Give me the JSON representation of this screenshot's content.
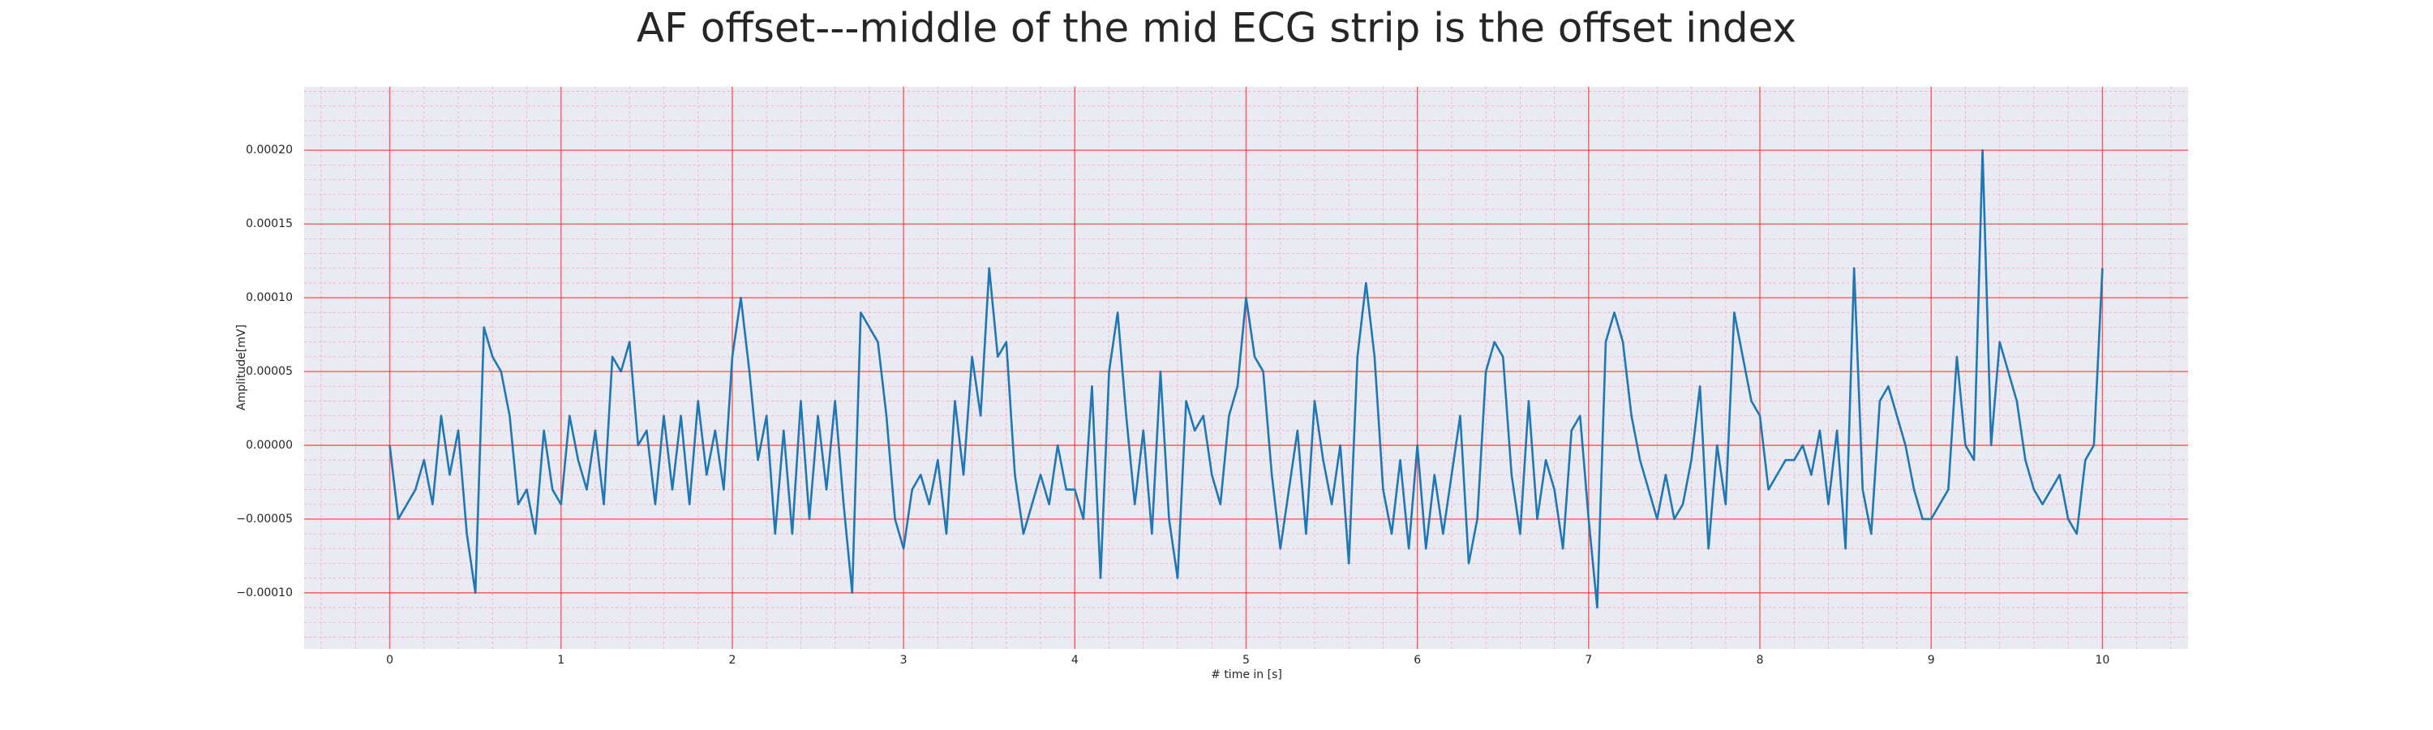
{
  "chart_data": {
    "type": "line",
    "title": "AF offset---middle of the mid ECG strip is the offset index",
    "xlabel": "# time in [s]",
    "ylabel": "Amplitude[mV]",
    "grid": true,
    "minor_grid": true,
    "xlim": [
      -0.5,
      10.5
    ],
    "ylim": [
      -0.000138,
      0.000243
    ],
    "xticks": [
      0,
      1,
      2,
      3,
      4,
      5,
      6,
      7,
      8,
      9,
      10
    ],
    "yticks": [
      {
        "value": -0.0001,
        "label": "−0.00010"
      },
      {
        "value": -5e-05,
        "label": "−0.00005"
      },
      {
        "value": 0,
        "label": "0.00000"
      },
      {
        "value": 5e-05,
        "label": "0.00005"
      },
      {
        "value": 0.0001,
        "label": "0.00010"
      },
      {
        "value": 0.00015,
        "label": "0.00015"
      },
      {
        "value": 0.0002,
        "label": "0.00020"
      }
    ],
    "x": [
      0,
      0.05,
      0.1,
      0.15,
      0.2,
      0.25,
      0.3,
      0.35,
      0.4,
      0.45,
      0.5,
      0.55,
      0.6,
      0.65,
      0.7,
      0.75,
      0.8,
      0.85,
      0.9,
      0.95,
      1,
      1.05,
      1.1,
      1.15,
      1.2,
      1.25,
      1.3,
      1.35,
      1.4,
      1.45,
      1.5,
      1.55,
      1.6,
      1.65,
      1.7,
      1.75,
      1.8,
      1.85,
      1.9,
      1.95,
      2,
      2.05,
      2.1,
      2.15,
      2.2,
      2.25,
      2.3,
      2.35,
      2.4,
      2.45,
      2.5,
      2.55,
      2.6,
      2.65,
      2.7,
      2.75,
      2.8,
      2.85,
      2.9,
      2.95,
      3,
      3.05,
      3.1,
      3.15,
      3.2,
      3.25,
      3.3,
      3.35,
      3.4,
      3.45,
      3.5,
      3.55,
      3.6,
      3.65,
      3.7,
      3.75,
      3.8,
      3.85,
      3.9,
      3.95,
      4,
      4.05,
      4.1,
      4.15,
      4.2,
      4.25,
      4.3,
      4.35,
      4.4,
      4.45,
      4.5,
      4.55,
      4.6,
      4.65,
      4.7,
      4.75,
      4.8,
      4.85,
      4.9,
      4.95,
      5,
      5.05,
      5.1,
      5.15,
      5.2,
      5.25,
      5.3,
      5.35,
      5.4,
      5.45,
      5.5,
      5.55,
      5.6,
      5.65,
      5.7,
      5.75,
      5.8,
      5.85,
      5.9,
      5.95,
      6,
      6.05,
      6.1,
      6.15,
      6.2,
      6.25,
      6.3,
      6.35,
      6.4,
      6.45,
      6.5,
      6.55,
      6.6,
      6.65,
      6.7,
      6.75,
      6.8,
      6.85,
      6.9,
      6.95,
      7,
      7.05,
      7.1,
      7.15,
      7.2,
      7.25,
      7.3,
      7.35,
      7.4,
      7.45,
      7.5,
      7.55,
      7.6,
      7.65,
      7.7,
      7.75,
      7.8,
      7.85,
      7.9,
      7.95,
      8,
      8.05,
      8.1,
      8.15,
      8.2,
      8.25,
      8.3,
      8.35,
      8.4,
      8.45,
      8.5,
      8.55,
      8.6,
      8.65,
      8.7,
      8.75,
      8.8,
      8.85,
      8.9,
      8.95,
      9,
      9.05,
      9.1,
      9.15,
      9.2,
      9.25,
      9.3,
      9.35,
      9.4,
      9.45,
      9.5,
      9.55,
      9.6,
      9.65,
      9.7,
      9.75,
      9.8,
      9.85,
      9.9,
      9.95,
      10
    ],
    "series": [
      {
        "color": "#1f77b4",
        "values": [
          0,
          -5e-05,
          -4e-05,
          -3e-05,
          -1e-05,
          -4e-05,
          2e-05,
          -2e-05,
          1e-05,
          -6e-05,
          -0.0001,
          8e-05,
          6e-05,
          5e-05,
          2e-05,
          -4e-05,
          -3e-05,
          -6e-05,
          1e-05,
          -3e-05,
          -4e-05,
          2e-05,
          -1e-05,
          -3e-05,
          1e-05,
          -4e-05,
          6e-05,
          5e-05,
          7e-05,
          0,
          1e-05,
          -4e-05,
          2e-05,
          -3e-05,
          2e-05,
          -4e-05,
          3e-05,
          -2e-05,
          1e-05,
          -3e-05,
          6e-05,
          0.0001,
          5e-05,
          -1e-05,
          2e-05,
          -6e-05,
          1e-05,
          -6e-05,
          3e-05,
          -5e-05,
          2e-05,
          -3e-05,
          3e-05,
          -4e-05,
          -0.0001,
          9e-05,
          8e-05,
          7e-05,
          2e-05,
          -5e-05,
          -7e-05,
          -3e-05,
          -2e-05,
          -4e-05,
          -1e-05,
          -6e-05,
          3e-05,
          -2e-05,
          6e-05,
          2e-05,
          0.00012,
          6e-05,
          7e-05,
          -2e-05,
          -6e-05,
          -4e-05,
          -2e-05,
          -4e-05,
          0,
          -3e-05,
          -3e-05,
          -5e-05,
          4e-05,
          -9e-05,
          5e-05,
          9e-05,
          2e-05,
          -4e-05,
          1e-05,
          -6e-05,
          5e-05,
          -5e-05,
          -9e-05,
          3e-05,
          1e-05,
          2e-05,
          -2e-05,
          -4e-05,
          2e-05,
          4e-05,
          0.0001,
          6e-05,
          5e-05,
          -2e-05,
          -7e-05,
          -3e-05,
          1e-05,
          -6e-05,
          3e-05,
          -1e-05,
          -4e-05,
          0,
          -8e-05,
          6e-05,
          0.00011,
          6e-05,
          -3e-05,
          -6e-05,
          -1e-05,
          -7e-05,
          0,
          -7e-05,
          -2e-05,
          -6e-05,
          -2e-05,
          2e-05,
          -8e-05,
          -5e-05,
          5e-05,
          7e-05,
          6e-05,
          -2e-05,
          -6e-05,
          3e-05,
          -5e-05,
          -1e-05,
          -3e-05,
          -7e-05,
          1e-05,
          2e-05,
          -5e-05,
          -0.00011,
          7e-05,
          9e-05,
          7e-05,
          2e-05,
          -1e-05,
          -3e-05,
          -5e-05,
          -2e-05,
          -5e-05,
          -4e-05,
          -1e-05,
          4e-05,
          -7e-05,
          0,
          -4e-05,
          9e-05,
          6e-05,
          3e-05,
          2e-05,
          -3e-05,
          -2e-05,
          -1e-05,
          -1e-05,
          0,
          -2e-05,
          1e-05,
          -4e-05,
          1e-05,
          -7e-05,
          0.00012,
          -3e-05,
          -6e-05,
          3e-05,
          4e-05,
          2e-05,
          0,
          -3e-05,
          -5e-05,
          -5e-05,
          -4e-05,
          -3e-05,
          6e-05,
          0,
          -1e-05,
          0.0002,
          0,
          7e-05,
          5e-05,
          3e-05,
          -1e-05,
          -3e-05,
          -4e-05,
          -3e-05,
          -2e-05,
          -5e-05,
          -6e-05,
          -1e-05,
          0,
          0.00012
        ]
      }
    ]
  }
}
